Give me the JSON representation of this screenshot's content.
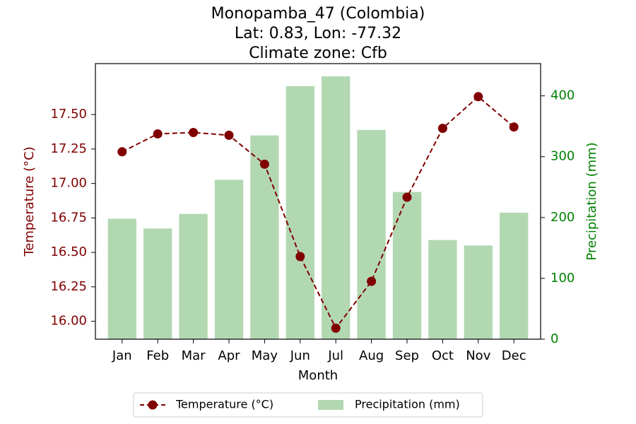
{
  "chart_data": {
    "type": "bar+line",
    "title_lines": [
      "Monopamba_47 (Colombia)",
      "Lat: 0.83, Lon: -77.32",
      "Climate zone: Cfb"
    ],
    "xlabel": "Month",
    "ylabel_left": "Temperature (°C)",
    "ylabel_right": "Precipitation (mm)",
    "categories": [
      "Jan",
      "Feb",
      "Mar",
      "Apr",
      "May",
      "Jun",
      "Jul",
      "Aug",
      "Sep",
      "Oct",
      "Nov",
      "Dec"
    ],
    "series": [
      {
        "name": "Temperature (°C)",
        "type": "line",
        "axis": "left",
        "style": "dashed",
        "marker": "circle",
        "color": "#800000",
        "values": [
          17.23,
          17.36,
          17.37,
          17.35,
          17.14,
          16.47,
          15.95,
          16.29,
          16.9,
          17.4,
          17.63,
          17.41
        ]
      },
      {
        "name": "Precipitation (mm)",
        "type": "bar",
        "axis": "right",
        "color": "#b2d8b2",
        "values": [
          198,
          182,
          206,
          262,
          335,
          416,
          432,
          344,
          242,
          163,
          154,
          208
        ]
      }
    ],
    "ylim_left": [
      15.87,
      17.87
    ],
    "yticks_left": [
      "16.00",
      "16.25",
      "16.50",
      "16.75",
      "17.00",
      "17.25",
      "17.50"
    ],
    "ylim_right": [
      0,
      453
    ],
    "yticks_right": [
      "0",
      "100",
      "200",
      "300",
      "400"
    ],
    "left_axis_color": "#800000",
    "right_axis_color": "#008000",
    "grid": false,
    "legend_position": "bottom-center"
  }
}
